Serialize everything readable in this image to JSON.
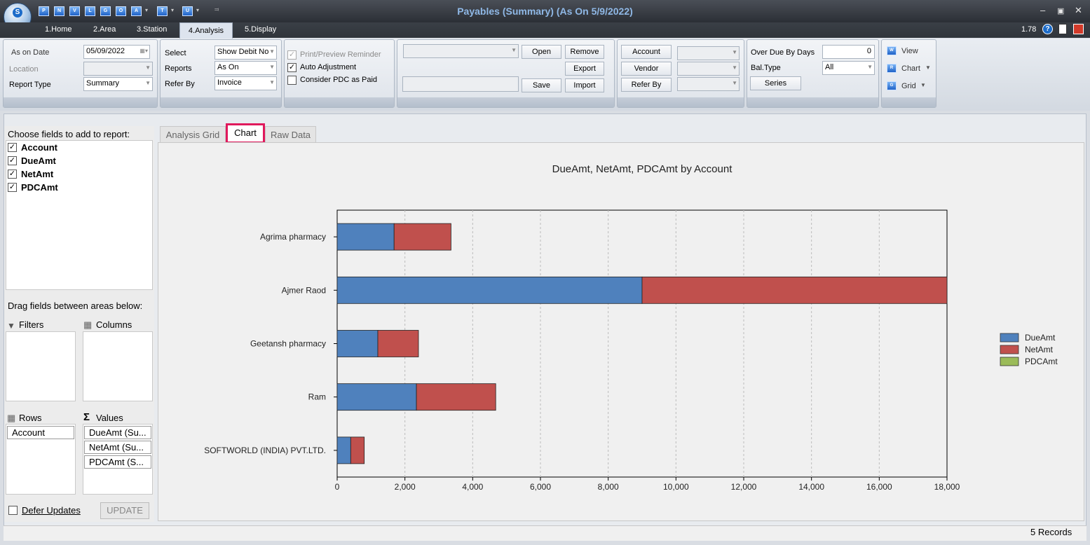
{
  "window": {
    "title": "Payables (Summary) (As On 5/9/2022)",
    "version": "1.78",
    "quick_access": [
      "P",
      "N",
      "V",
      "L",
      "G",
      "O",
      "A",
      "T",
      "U"
    ]
  },
  "menu_tabs": [
    "1.Home",
    "2.Area",
    "3.Station",
    "4.Analysis",
    "5.Display"
  ],
  "ribbon": {
    "as_on_date_label": "As on Date",
    "as_on_date_value": "05/09/2022",
    "location_label": "Location",
    "report_type_label": "Report Type",
    "report_type_value": "Summary",
    "select_label": "Select",
    "select_value": "Show Debit No",
    "reports_label": "Reports",
    "reports_value": "As On",
    "refer_by_label": "Refer By",
    "refer_by_value": "Invoice",
    "print_preview_label": "Print/Preview Reminder",
    "auto_adjustment_label": "Auto Adjustment",
    "consider_pdc_label": "Consider PDC as Paid",
    "open_label": "Open",
    "remove_label": "Remove",
    "export_label": "Export",
    "save_label": "Save",
    "import_label": "Import",
    "account_btn": "Account",
    "vendor_btn": "Vendor",
    "refer_by_btn": "Refer By",
    "over_due_label": "Over Due By Days",
    "over_due_value": "0",
    "bal_type_label": "Bal.Type",
    "bal_type_value": "All",
    "series_btn": "Series",
    "view_label": "View",
    "chart_label": "Chart",
    "grid_label": "Grid"
  },
  "left_panel": {
    "choose_fields": "Choose fields to add to report:",
    "fields": [
      "Account",
      "DueAmt",
      "NetAmt",
      "PDCAmt"
    ],
    "drag_hint": "Drag fields between areas below:",
    "filters": "Filters",
    "columns": "Columns",
    "rows": "Rows",
    "values": "Values",
    "row_items": [
      "Account"
    ],
    "value_items": [
      "DueAmt (Su...",
      "NetAmt (Su...",
      "PDCAmt (S..."
    ],
    "defer_updates": "Defer Updates",
    "update_btn": "UPDATE"
  },
  "chart_tabs": [
    "Analysis Grid",
    "Chart",
    "Raw Data"
  ],
  "status": {
    "records": "5 Records"
  },
  "colors": {
    "due": "#4f81bd",
    "net": "#c0504d",
    "pdc": "#9bbb59",
    "highlight": "#e0195c"
  },
  "chart_data": {
    "type": "bar",
    "orientation": "horizontal",
    "stacked": true,
    "title": "DueAmt, NetAmt, PDCAmt by Account",
    "categories": [
      "Agrima pharmacy",
      "Ajmer Raod",
      "Geetansh pharmacy",
      "Ram",
      "SOFTWORLD (INDIA) PVT.LTD."
    ],
    "series": [
      {
        "name": "DueAmt",
        "values": [
          1680,
          9000,
          1200,
          2340,
          400
        ]
      },
      {
        "name": "NetAmt",
        "values": [
          1680,
          9000,
          1200,
          2340,
          400
        ]
      },
      {
        "name": "PDCAmt",
        "values": [
          0,
          0,
          0,
          0,
          0
        ]
      }
    ],
    "xlim": [
      0,
      18000
    ],
    "xticks": [
      0,
      2000,
      4000,
      6000,
      8000,
      10000,
      12000,
      14000,
      16000,
      18000
    ],
    "xtick_labels": [
      "0",
      "2,000",
      "4,000",
      "6,000",
      "8,000",
      "10,000",
      "12,000",
      "14,000",
      "16,000",
      "18,000"
    ],
    "grid": "vertical dashed",
    "legend": "right"
  }
}
